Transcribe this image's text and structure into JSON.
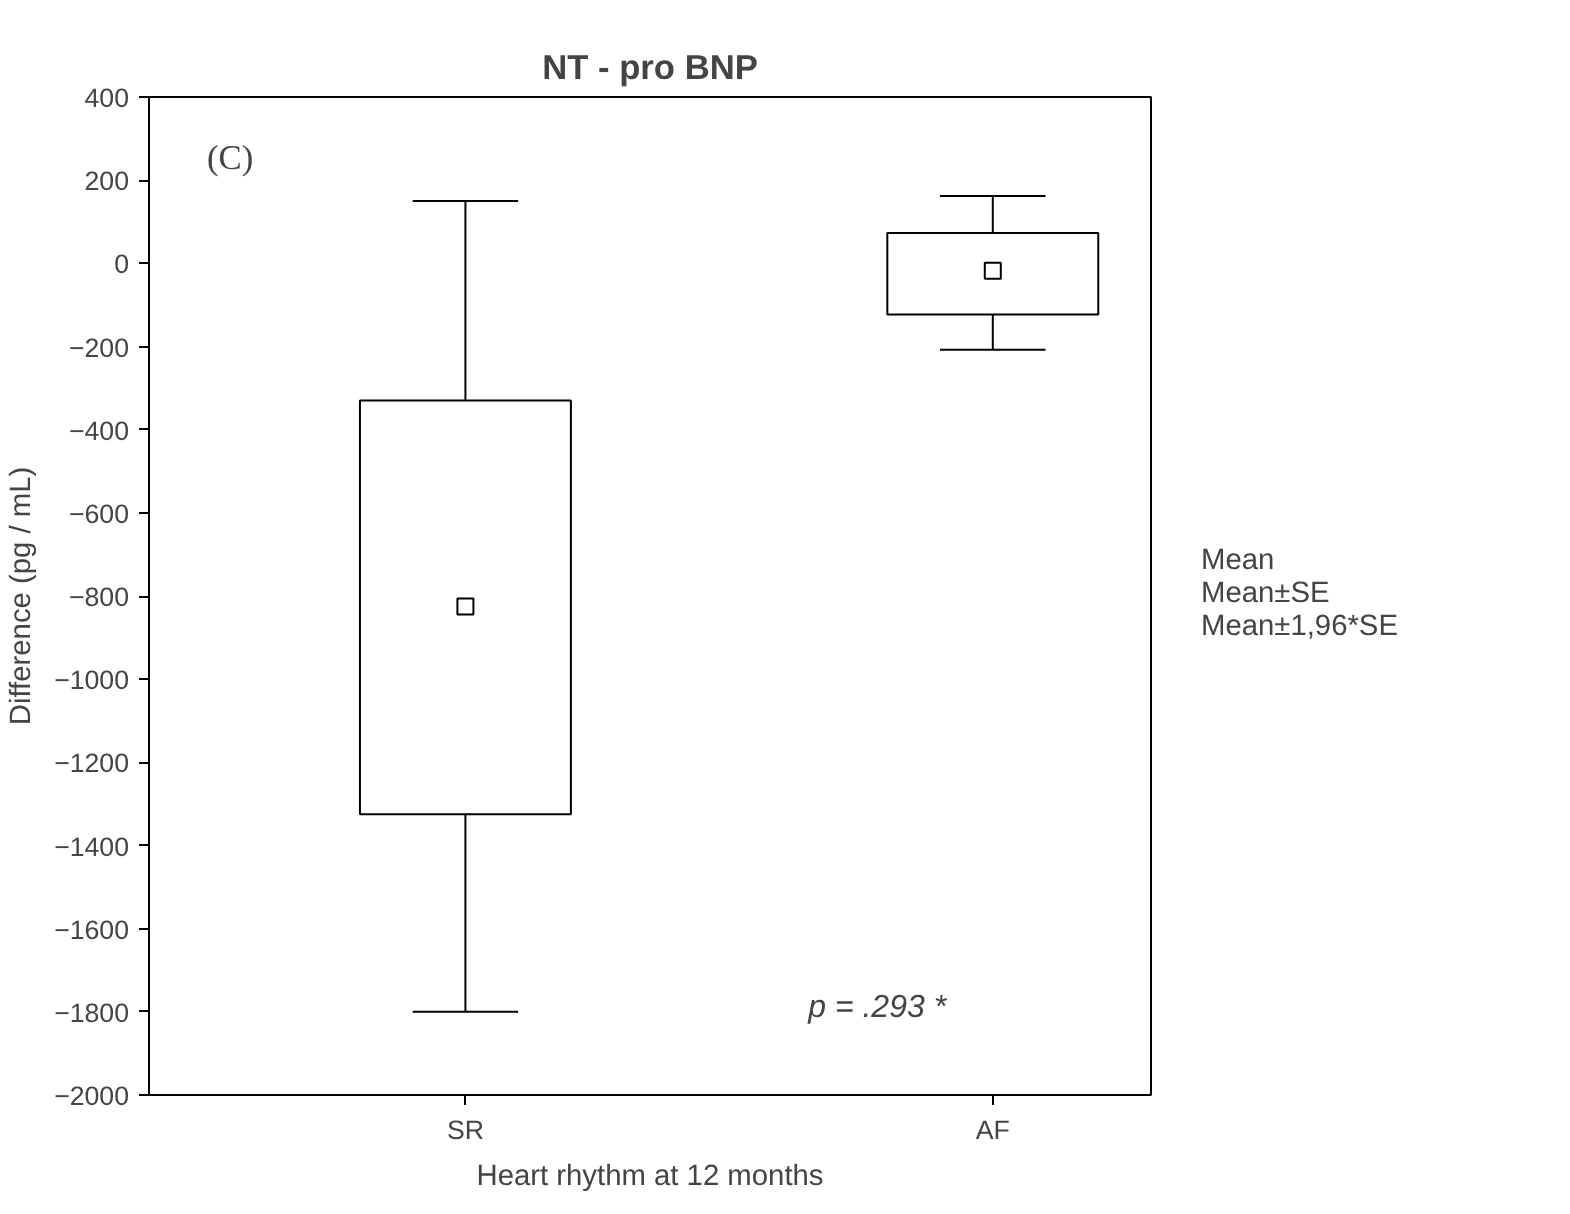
{
  "chart_data": {
    "type": "box",
    "title": "NT - pro BNP",
    "xlabel": "Heart rhythm at 12 months",
    "ylabel": "Difference (pg / mL)",
    "categories": [
      "SR",
      "AF"
    ],
    "boxes": [
      {
        "low": -1800,
        "q1": -1325,
        "mean": -825,
        "q3": -330,
        "high": 150
      },
      {
        "low": -208,
        "q1": -123,
        "mean": -18,
        "q3": 73,
        "high": 162
      }
    ],
    "color": "#000000",
    "ylim": [
      -2000,
      400
    ],
    "yticks": [
      -2000,
      -1800,
      -1600,
      -1400,
      -1200,
      -1000,
      -800,
      -600,
      -400,
      -200,
      0,
      200,
      400
    ],
    "grid": false,
    "marker": "square",
    "annotations": [
      "(C)",
      "p = .293 *",
      "Mean",
      "Mean±SE",
      "Mean±1,96*SE"
    ]
  }
}
